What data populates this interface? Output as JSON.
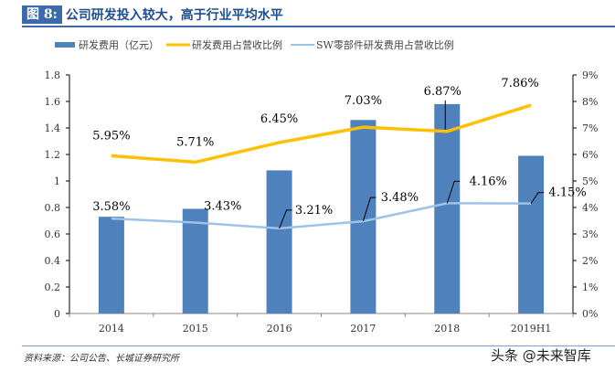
{
  "header": {
    "figure_label": "图 8:",
    "title": "公司研发投入较大，高于行业平均水平"
  },
  "chart_data": {
    "type": "bar+line",
    "categories": [
      "2014",
      "2015",
      "2016",
      "2017",
      "2018",
      "2019H1"
    ],
    "series": [
      {
        "name": "研发费用（亿元）",
        "type": "bar",
        "axis": "left",
        "color": "#4f81bd",
        "values": [
          0.73,
          0.79,
          1.08,
          1.46,
          1.58,
          1.19
        ]
      },
      {
        "name": "研发费用占营收比例",
        "type": "line",
        "axis": "right",
        "color": "#ffc000",
        "values": [
          5.95,
          5.71,
          6.45,
          7.03,
          6.87,
          7.86
        ],
        "labels": [
          "5.95%",
          "5.71%",
          "6.45%",
          "7.03%",
          "6.87%",
          "7.86%"
        ]
      },
      {
        "name": "SW零部件研发费用占营收比例",
        "type": "line",
        "axis": "right",
        "color": "#9dc3e6",
        "values": [
          3.58,
          3.43,
          3.21,
          3.48,
          4.16,
          4.15
        ],
        "labels": [
          "3.58%",
          "3.43%",
          "3.21%",
          "3.48%",
          "4.16%",
          "4.15%"
        ]
      }
    ],
    "left_axis": {
      "ylim": [
        0,
        1.8
      ],
      "ticks": [
        "0",
        "0.2",
        "0.4",
        "0.6",
        "0.8",
        "1",
        "1.2",
        "1.4",
        "1.6",
        "1.8"
      ]
    },
    "right_axis": {
      "ylim": [
        0,
        9
      ],
      "ticks": [
        "0%",
        "1%",
        "2%",
        "3%",
        "4%",
        "5%",
        "6%",
        "7%",
        "8%",
        "9%"
      ]
    },
    "legend": "top",
    "grid": false
  },
  "footer": {
    "source": "资料来源：公司公告、长城证券研究所",
    "watermark": "头条 @未来智库"
  }
}
